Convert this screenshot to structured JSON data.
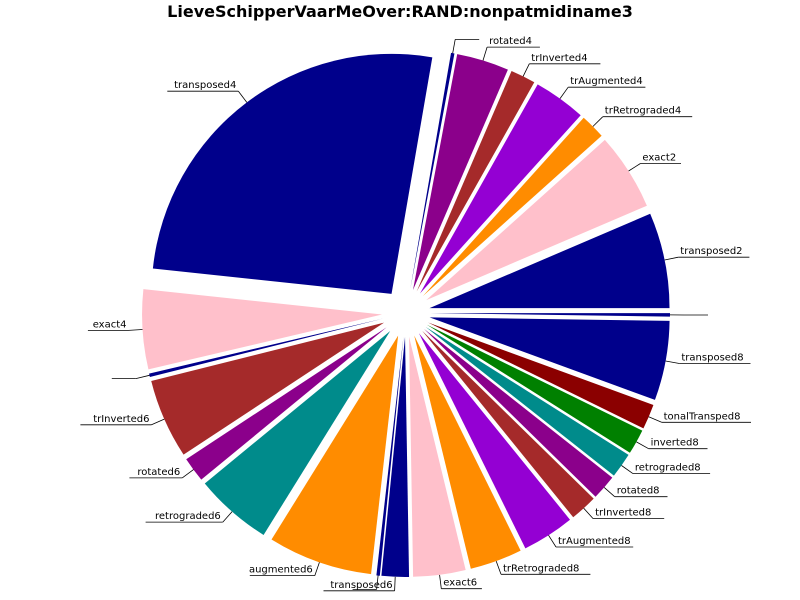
{
  "chart_data": {
    "type": "pie",
    "title": "LieveSchipperVaarMeOver:RAND:nonpatmidiname3",
    "slices": [
      {
        "label": "transposed2",
        "value": 4.2,
        "color": "#00008b"
      },
      {
        "label": "exact2",
        "value": 3.4,
        "color": "#ffc0cb"
      },
      {
        "label": "trRetrograded4",
        "value": 1.1,
        "color": "#ff8c00"
      },
      {
        "label": "trAugmented4",
        "value": 2.3,
        "color": "#9400d3"
      },
      {
        "label": "trInverted4",
        "value": 1.1,
        "color": "#a52a2a"
      },
      {
        "label": "rotated4",
        "value": 2.3,
        "color": "#8b008b"
      },
      {
        "label": "",
        "value": 0.15,
        "color": "#00008b"
      },
      {
        "label": "transposed4",
        "value": 17.0,
        "color": "#00008b"
      },
      {
        "label": "exact4",
        "value": 3.5,
        "color": "#ffc0cb"
      },
      {
        "label": "",
        "value": 0.15,
        "color": "#00008b"
      },
      {
        "label": "trInverted6",
        "value": 3.5,
        "color": "#a52a2a"
      },
      {
        "label": "rotated6",
        "value": 1.1,
        "color": "#8b008b"
      },
      {
        "label": "retrograded6",
        "value": 3.4,
        "color": "#008b8b"
      },
      {
        "label": "augmented6",
        "value": 4.6,
        "color": "#ff8c00"
      },
      {
        "label": "",
        "value": 0.15,
        "color": "#00008b"
      },
      {
        "label": "transposed6",
        "value": 1.2,
        "color": "#00008b"
      },
      {
        "label": "exact6",
        "value": 2.3,
        "color": "#ffc0cb"
      },
      {
        "label": "trRetrograded8",
        "value": 2.3,
        "color": "#ff8c00"
      },
      {
        "label": "trAugmented8",
        "value": 2.3,
        "color": "#9400d3"
      },
      {
        "label": "trInverted8",
        "value": 1.2,
        "color": "#a52a2a"
      },
      {
        "label": "rotated8",
        "value": 1.1,
        "color": "#8b008b"
      },
      {
        "label": "retrograded8",
        "value": 1.1,
        "color": "#008b8b"
      },
      {
        "label": "inverted8",
        "value": 1.1,
        "color": "#008000"
      },
      {
        "label": "tonalTransped8",
        "value": 1.1,
        "color": "#8b0000"
      },
      {
        "label": "transposed8",
        "value": 3.5,
        "color": "#00008b"
      },
      {
        "label": "",
        "value": 0.15,
        "color": "#00008b"
      }
    ]
  }
}
